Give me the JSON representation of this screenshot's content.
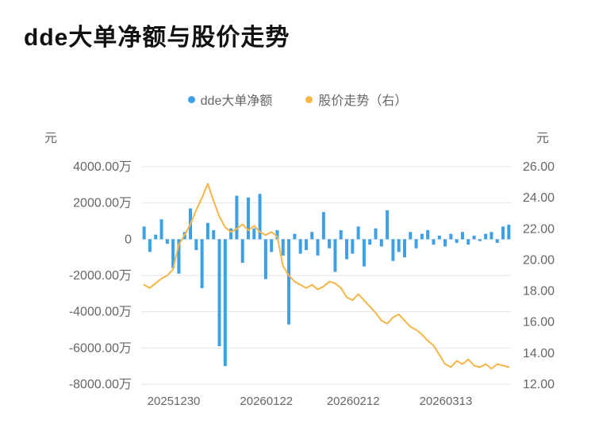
{
  "title": "dde大单净额与股价走势",
  "legend": {
    "items": [
      {
        "label": "dde大单净额",
        "color": "#3ba0e8"
      },
      {
        "label": "股价走势（右）",
        "color": "#f8b545"
      }
    ]
  },
  "axes": {
    "left_unit": "元",
    "right_unit": "元",
    "left_ticks": [
      "4000.00万",
      "2000.00万",
      "0",
      "-2000.00万",
      "-4000.00万",
      "-6000.00万",
      "-8000.00万"
    ],
    "right_ticks": [
      "26.00",
      "24.00",
      "22.00",
      "20.00",
      "18.00",
      "16.00",
      "14.00",
      "12.00"
    ],
    "x_ticks": [
      {
        "label": "20251230",
        "index": 0
      },
      {
        "label": "20260122",
        "index": 16
      },
      {
        "label": "20260212",
        "index": 31
      },
      {
        "label": "20260313",
        "index": 47
      }
    ]
  },
  "chart_data": {
    "type": "bar",
    "title": "dde大单净额与股价走势",
    "left_ylabel": "元",
    "right_ylabel": "元",
    "left_ylim": [
      -8000,
      4000
    ],
    "right_ylim": [
      12,
      26
    ],
    "left_unit_note": "bar values in 万元 (10k yuan)",
    "grid": true,
    "legend_position": "top-center",
    "x_tick_labels": [
      "20251230",
      "20260122",
      "20260212",
      "20260313"
    ],
    "x_tick_indices": [
      0,
      16,
      31,
      47
    ],
    "series": [
      {
        "name": "dde大单净额",
        "type": "bar",
        "axis": "left",
        "color": "#3ba0e8",
        "values": [
          700,
          -700,
          250,
          1100,
          -250,
          -1600,
          -1900,
          400,
          1700,
          -600,
          -2700,
          900,
          500,
          -5900,
          -7000,
          600,
          2400,
          -1300,
          2300,
          600,
          2500,
          -2200,
          -700,
          500,
          -900,
          -4700,
          300,
          -800,
          -600,
          400,
          -900,
          1500,
          -500,
          -1800,
          500,
          -1100,
          -800,
          700,
          -1500,
          -300,
          600,
          -400,
          1600,
          -1200,
          -700,
          -1000,
          400,
          -500,
          300,
          500,
          -300,
          200,
          -400,
          300,
          -200,
          400,
          -300,
          200,
          -100,
          300,
          400,
          -200,
          700,
          800
        ]
      },
      {
        "name": "股价走势（右）",
        "type": "line",
        "axis": "right",
        "color": "#f8b545",
        "values": [
          18.4,
          18.2,
          18.5,
          18.8,
          19.0,
          19.4,
          21.0,
          21.6,
          22.3,
          23.2,
          24.0,
          24.9,
          23.8,
          22.8,
          22.1,
          21.8,
          22.0,
          22.3,
          21.9,
          22.2,
          21.8,
          21.6,
          21.8,
          21.5,
          19.6,
          19.0,
          18.6,
          18.4,
          18.2,
          18.4,
          18.1,
          18.3,
          18.6,
          18.5,
          18.2,
          17.6,
          17.4,
          17.8,
          17.4,
          17.0,
          16.6,
          16.1,
          15.9,
          16.3,
          16.5,
          16.1,
          15.7,
          15.5,
          15.2,
          14.8,
          14.5,
          13.9,
          13.3,
          13.1,
          13.5,
          13.3,
          13.6,
          13.2,
          13.1,
          13.3,
          13.0,
          13.3,
          13.2,
          13.1
        ]
      }
    ]
  },
  "style": {
    "grid_color": "#e4e4e4",
    "tick_text_color": "#666666",
    "bar_color": "#3ba0e8",
    "line_color": "#f8b545"
  }
}
